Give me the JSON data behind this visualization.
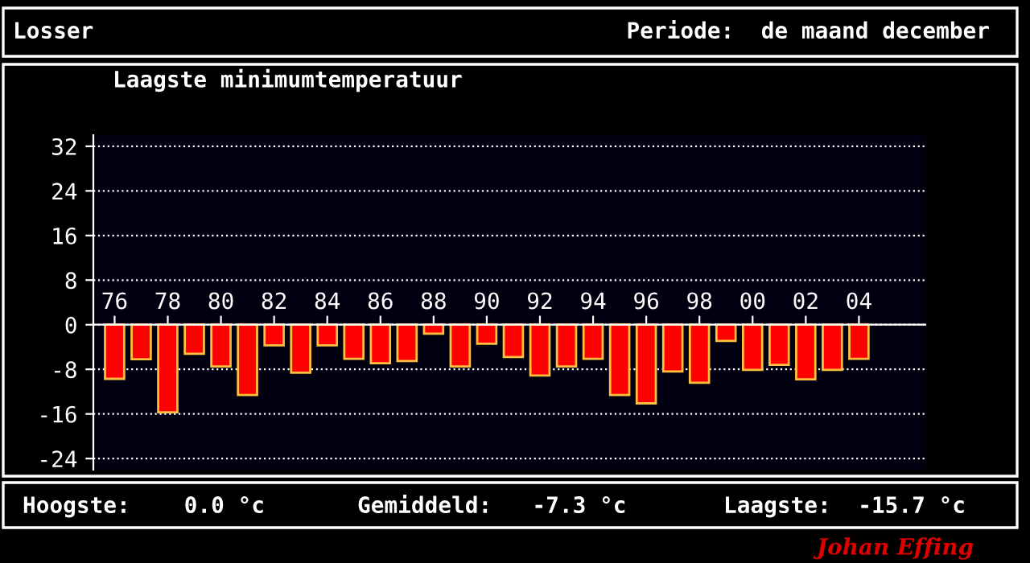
{
  "chart_data": {
    "type": "bar",
    "title": "Laagste minimumtemperatuur",
    "categories": [
      "76",
      null,
      "78",
      null,
      "80",
      null,
      "82",
      null,
      "84",
      null,
      "86",
      null,
      "88",
      null,
      "90",
      null,
      "92",
      null,
      "94",
      null,
      "96",
      null,
      "98",
      null,
      "00",
      null,
      "02",
      null,
      "04"
    ],
    "series": [
      {
        "color": "#ff0000",
        "values": [
          -9.7,
          -6.2,
          -15.7,
          -5.2,
          -7.5,
          -12.6,
          -3.7,
          -8.6,
          -3.7,
          -6.1,
          -6.9,
          -6.5,
          -1.6,
          -7.5,
          -3.4,
          -5.8,
          -9.1,
          -7.5,
          -6.1,
          -12.6,
          -14.1,
          -8.4,
          -10.4,
          -2.9,
          -8.1,
          -7.2,
          -9.8,
          -8.1,
          -6.1
        ]
      }
    ],
    "ylim": [
      -26,
      34
    ],
    "yticks": [
      -24,
      -16,
      -8,
      0,
      8,
      16,
      24,
      32
    ],
    "grid": "y",
    "annotations": [
      "Losser",
      "Periode:  de maand december",
      "Hoogste:    0.0 °c",
      "Gemiddeld:   -7.3 °c",
      "Laagste:  -15.7 °c",
      "Johan Effing"
    ]
  }
}
